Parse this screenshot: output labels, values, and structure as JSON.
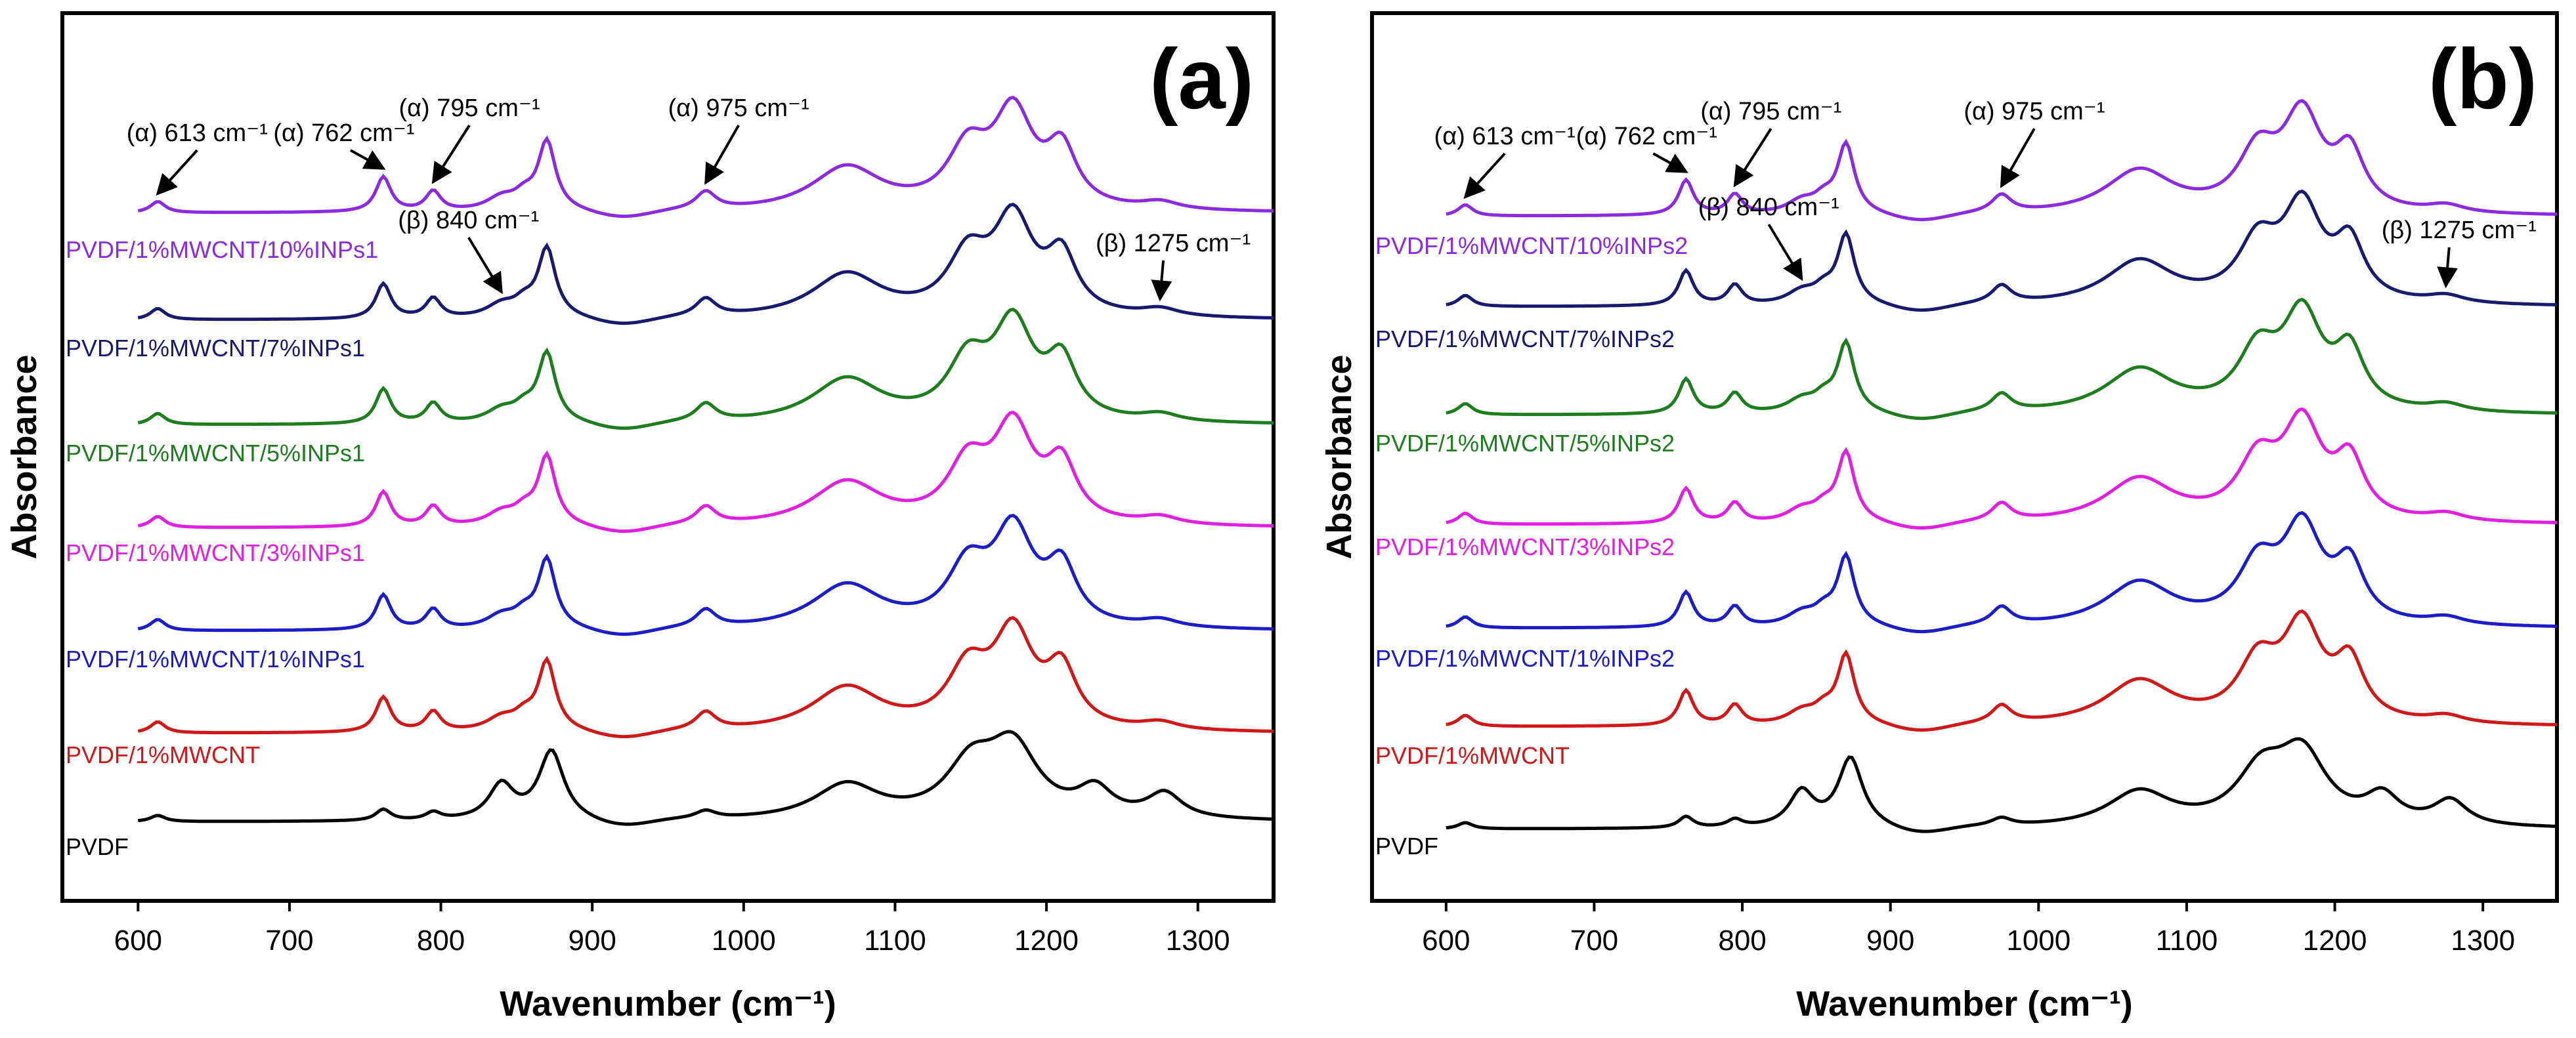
{
  "chart_data": [
    {
      "type": "line",
      "panel_label": "(a)",
      "xlabel": "Wavenumber (cm⁻¹)",
      "ylabel": "Absorbance",
      "xlim": [
        550,
        1350
      ],
      "xticks": [
        600,
        700,
        800,
        900,
        1000,
        1100,
        1200,
        1300
      ],
      "y_ticks_shown": false,
      "grid": false,
      "series": [
        {
          "name": "PVDF/1%MWCNT/10%INPs1",
          "color": "#8a2be2",
          "offset": 6.0
        },
        {
          "name": "PVDF/1%MWCNT/7%INPs1",
          "color": "#191970",
          "offset": 5.0
        },
        {
          "name": "PVDF/1%MWCNT/5%INPs1",
          "color": "#1e7d1e",
          "offset": 4.0
        },
        {
          "name": "PVDF/1%MWCNT/3%INPs1",
          "color": "#e020e0",
          "offset": 3.0
        },
        {
          "name": "PVDF/1%MWCNT/1%INPs1",
          "color": "#1c1cc8",
          "offset": 2.0
        },
        {
          "name": "PVDF/1%MWCNT",
          "color": "#d01818",
          "offset": 1.0
        },
        {
          "name": "PVDF",
          "color": "#000000",
          "offset": 0.0
        }
      ],
      "annotations": [
        {
          "text": "(α) 613 cm⁻¹",
          "x": 613
        },
        {
          "text": "(α) 762 cm⁻¹",
          "x": 762
        },
        {
          "text": "(α) 795 cm⁻¹",
          "x": 795
        },
        {
          "text": "(α) 975 cm⁻¹",
          "x": 975
        },
        {
          "text": "(β) 840 cm⁻¹",
          "x": 840
        },
        {
          "text": "(β) 1275 cm⁻¹",
          "x": 1275
        }
      ]
    },
    {
      "type": "line",
      "panel_label": "(b)",
      "xlabel": "Wavenumber (cm⁻¹)",
      "ylabel": "Absorbance",
      "xlim": [
        550,
        1350
      ],
      "xticks": [
        600,
        700,
        800,
        900,
        1000,
        1100,
        1200,
        1300
      ],
      "y_ticks_shown": false,
      "grid": false,
      "series": [
        {
          "name": "PVDF/1%MWCNT/10%INPs2",
          "color": "#8a2be2",
          "offset": 6.0
        },
        {
          "name": "PVDF/1%MWCNT/7%INPs2",
          "color": "#191970",
          "offset": 5.0
        },
        {
          "name": "PVDF/1%MWCNT/5%INPs2",
          "color": "#1e7d1e",
          "offset": 4.0
        },
        {
          "name": "PVDF/1%MWCNT/3%INPs2",
          "color": "#e020e0",
          "offset": 3.0
        },
        {
          "name": "PVDF/1%MWCNT/1%INPs2",
          "color": "#1c1cc8",
          "offset": 2.0
        },
        {
          "name": "PVDF/1%MWCNT",
          "color": "#d01818",
          "offset": 1.0
        },
        {
          "name": "PVDF",
          "color": "#000000",
          "offset": 0.0
        }
      ],
      "annotations": [
        {
          "text": "(α) 613 cm⁻¹",
          "x": 613
        },
        {
          "text": "(α) 762 cm⁻¹",
          "x": 762
        },
        {
          "text": "(α) 795 cm⁻¹",
          "x": 795
        },
        {
          "text": "(α) 975 cm⁻¹",
          "x": 975
        },
        {
          "text": "(β) 840 cm⁻¹",
          "x": 840
        },
        {
          "text": "(β) 1275 cm⁻¹",
          "x": 1275
        }
      ]
    }
  ]
}
